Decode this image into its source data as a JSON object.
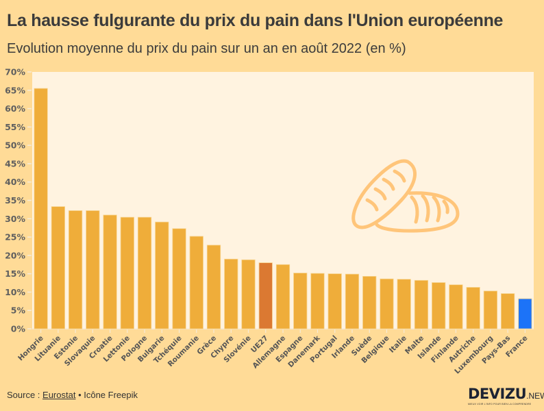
{
  "header": {
    "title": "La hausse fulgurante du prix du pain dans l'Union européenne",
    "subtitle": "Evolution moyenne du prix du pain sur un an en août 2022 (en %)"
  },
  "footer": {
    "source_prefix": "Source : ",
    "source_link": "Eurostat",
    "separator": " • ",
    "credit": "Icône Freepik"
  },
  "logo": {
    "brand": "DEVIZU",
    "suffix": ".NEWS",
    "tagline": "MIEUX VOIR L'INFO POUR BIEN LA COMPRENDRE"
  },
  "decoration": {
    "icon": "bread-icon"
  },
  "colors": {
    "background": "#FFDB97",
    "plot_background": "#FFF3E0",
    "bar_default": "#EFAD3A",
    "bar_eu": "#DB7932",
    "bar_france": "#1C73F8",
    "icon": "#FFC57A"
  },
  "chart_data": {
    "type": "bar",
    "title": "La hausse fulgurante du prix du pain dans l'Union européenne",
    "subtitle": "Evolution moyenne du prix du pain sur un an en août 2022 (en %)",
    "xlabel": "",
    "ylabel": "",
    "ylim": [
      0,
      70
    ],
    "yticks": [
      0,
      5,
      10,
      15,
      20,
      25,
      30,
      35,
      40,
      45,
      50,
      55,
      60,
      65,
      70
    ],
    "ytick_suffix": "%",
    "grid": false,
    "legend": "none",
    "categories": [
      "Hongrie",
      "Lituanie",
      "Estonie",
      "Slovaquie",
      "Croatie",
      "Lettonie",
      "Pologne",
      "Bulgarie",
      "Tchéquie",
      "Roumanie",
      "Grèce",
      "Chypre",
      "Slovénie",
      "UE27",
      "Allemagne",
      "Espagne",
      "Danemark",
      "Portugal",
      "Irlande",
      "Suède",
      "Belgique",
      "Italie",
      "Malte",
      "Islande",
      "Finlande",
      "Autriche",
      "Luxembourg",
      "Pays-Bas",
      "France"
    ],
    "values": [
      65.5,
      33.3,
      32.2,
      32.2,
      31.0,
      30.4,
      30.4,
      29.1,
      27.3,
      25.2,
      22.8,
      19.0,
      18.8,
      18.0,
      17.5,
      15.2,
      15.1,
      15.0,
      14.9,
      14.3,
      13.6,
      13.5,
      13.2,
      12.6,
      12.0,
      11.3,
      10.3,
      9.6,
      8.2
    ],
    "highlights": {
      "UE27": "bar_eu",
      "France": "bar_france"
    }
  }
}
